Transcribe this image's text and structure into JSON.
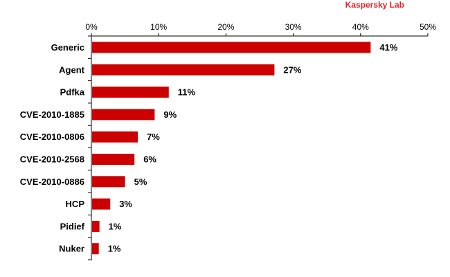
{
  "brand": {
    "label": "Kaspersky Lab",
    "color": "#e8202a"
  },
  "chart_data": {
    "type": "bar",
    "orientation": "horizontal",
    "bar_color": "#cc0000",
    "xlim": [
      0,
      50
    ],
    "x_ticks": [
      "0%",
      "10%",
      "20%",
      "30%",
      "40%",
      "50%"
    ],
    "categories": [
      "Generic",
      "Agent",
      "Pdfka",
      "CVE-2010-1885",
      "CVE-2010-0806",
      "CVE-2010-2568",
      "CVE-2010-0886",
      "HCP",
      "Pidief",
      "Nuker"
    ],
    "values": [
      41.5,
      27.2,
      11.5,
      9.4,
      6.9,
      6.4,
      5.0,
      2.8,
      1.2,
      1.1
    ],
    "labels": [
      "41%",
      "27%",
      "11%",
      "9%",
      "7%",
      "6%",
      "5%",
      "3%",
      "1%",
      "1%"
    ],
    "grid": false,
    "legend": "none"
  }
}
